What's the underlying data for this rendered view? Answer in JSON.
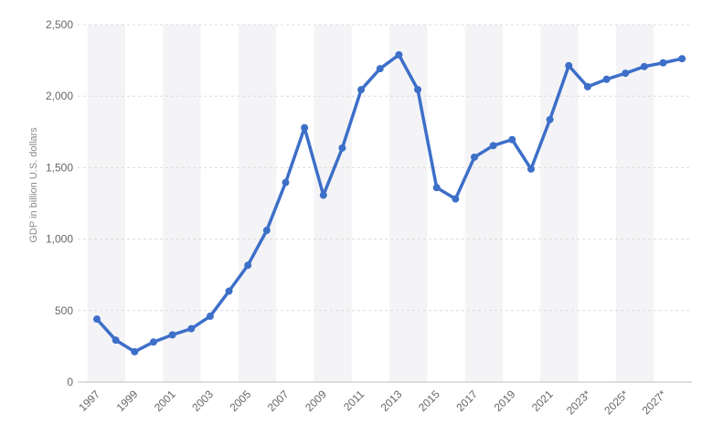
{
  "chart_data": {
    "type": "line",
    "ylabel": "GDP in billion U.S. dollars",
    "xlabel": "",
    "ylim": [
      0,
      2500
    ],
    "yticks": [
      "0",
      "500",
      "1,000",
      "1,500",
      "2,000",
      "2,500"
    ],
    "ytick_values": [
      0,
      500,
      1000,
      1500,
      2000,
      2500
    ],
    "grid": "horizontal-dashed",
    "x": [
      "1997",
      "1998",
      "1999",
      "2000",
      "2001",
      "2002",
      "2003",
      "2004",
      "2005",
      "2006",
      "2007",
      "2008",
      "2009",
      "2010",
      "2011",
      "2012",
      "2013",
      "2014",
      "2015",
      "2016",
      "2017",
      "2018",
      "2019",
      "2020",
      "2021",
      "2022",
      "2023*",
      "2024*",
      "2025*",
      "2026*",
      "2027*",
      "2028*"
    ],
    "xtick_labels": [
      "1997",
      "1999",
      "2001",
      "2003",
      "2005",
      "2007",
      "2009",
      "2011",
      "2013",
      "2015",
      "2017",
      "2019",
      "2021",
      "2023*",
      "2025*",
      "2027*"
    ],
    "series": [
      {
        "color": "#3d6fc9",
        "values": [
          440,
          293,
          212,
          280,
          330,
          373,
          460,
          636,
          817,
          1061,
          1396,
          1779,
          1307,
          1637,
          2045,
          2192,
          2289,
          2046,
          1360,
          1281,
          1573,
          1654,
          1696,
          1490,
          1836,
          2213,
          2066,
          2118,
          2160,
          2207,
          2233,
          2262
        ]
      }
    ]
  }
}
